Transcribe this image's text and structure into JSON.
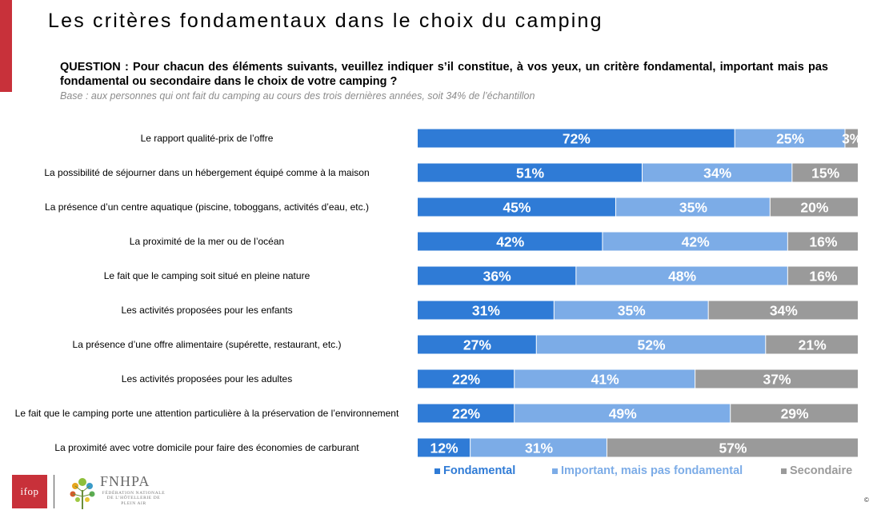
{
  "title": "Les critères fondamentaux dans le choix du camping",
  "question": "QUESTION : Pour chacun des éléments suivants, veuillez indiquer s’il constitue, à vos yeux, un critère fondamental, important mais pas fondamental ou secondaire dans le choix de votre camping ?",
  "base": "Base : aux personnes qui ont fait du camping au cours des trois dernières années, soit 34% de l’échantillon",
  "colors": {
    "accent": "#c8313a",
    "fondamental": "#2f7bd6",
    "important": "#7cace7",
    "secondaire": "#9a9a9a",
    "ifop": "#c8313a"
  },
  "chart_data": {
    "type": "bar",
    "orientation": "horizontal",
    "stacked": true,
    "unit": "%",
    "xlim": [
      0,
      100
    ],
    "legend_position": "bottom",
    "categories": [
      "Le rapport qualité-prix de l’offre",
      "La possibilité de séjourner dans un hébergement équipé comme à la maison",
      "La présence d’un centre aquatique (piscine, toboggans, activités d’eau, etc.)",
      "La proximité de la mer ou de l’océan",
      "Le fait que le camping soit situé en pleine nature",
      "Les activités proposées pour les enfants",
      "La présence d’une offre alimentaire (supérette, restaurant, etc.)",
      "Les activités proposées pour les adultes",
      "Le fait que le camping porte une attention particulière à la préservation de l’environnement",
      "La proximité avec votre domicile pour faire des économies de carburant"
    ],
    "series": [
      {
        "name": "Fondamental",
        "values": [
          72,
          51,
          45,
          42,
          36,
          31,
          27,
          22,
          22,
          12
        ]
      },
      {
        "name": "Important, mais pas fondamental",
        "values": [
          25,
          34,
          35,
          42,
          48,
          35,
          52,
          41,
          49,
          31
        ]
      },
      {
        "name": "Secondaire",
        "values": [
          3,
          15,
          20,
          16,
          16,
          34,
          21,
          37,
          29,
          57
        ]
      }
    ]
  },
  "legend": {
    "fondamental": "Fondamental",
    "important": "Important, mais pas fondamental",
    "secondaire": "Secondaire"
  },
  "logos": {
    "ifop": "ifop",
    "fnhpa": "FNHPA",
    "fnhpa_sub": "FÉDÉRATION NATIONALE DE L’HÔTELLERIE DE PLEIN AIR"
  },
  "copyright": "©"
}
